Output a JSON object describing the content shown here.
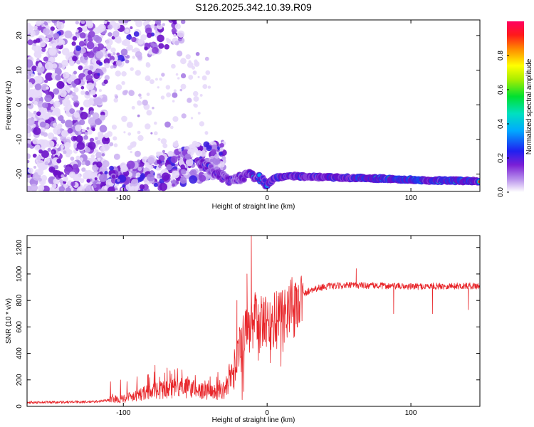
{
  "title": "S126.2025.342.10.39.R09",
  "chart_data": [
    {
      "type": "heatmap",
      "xlabel": "Height of straight line (km)",
      "ylabel": "Frequency (Hz)",
      "xlim": [
        -167,
        148
      ],
      "ylim": [
        -25,
        24.5
      ],
      "xticks": [
        -100,
        0,
        100
      ],
      "yticks": [
        -20,
        -10,
        0,
        10,
        20
      ],
      "colorbar": {
        "label": "Normalized spectral amplitude",
        "range": [
          0,
          1
        ],
        "ticks": [
          0.0,
          0.2,
          0.4,
          0.6,
          0.8
        ]
      },
      "ridge": {
        "x": [
          -45,
          -38,
          -30,
          -25,
          -18,
          -12,
          -6,
          0,
          6,
          15,
          30,
          50,
          80,
          110,
          148
        ],
        "frequency": [
          -17,
          -19,
          -21,
          -22,
          -21,
          -20,
          -21,
          -23,
          -21,
          -20.5,
          -20.8,
          -21,
          -21.3,
          -21.8,
          -22
        ]
      }
    },
    {
      "type": "line",
      "xlabel": "Height of straight line (km)",
      "ylabel": "SNR (10 * v/v)",
      "xlim": [
        -167,
        148
      ],
      "ylim": [
        0,
        1290
      ],
      "xticks": [
        -100,
        0,
        100
      ],
      "yticks": [
        0,
        200,
        400,
        600,
        800,
        1000,
        1200
      ],
      "color": "#e8262a",
      "envelope": {
        "x": [
          -167,
          -120,
          -100,
          -90,
          -80,
          -70,
          -60,
          -50,
          -40,
          -30,
          -24,
          -20,
          -16,
          -12,
          -9,
          -6,
          -3,
          0,
          5,
          10,
          15,
          20,
          25,
          30,
          40,
          60,
          80,
          100,
          120,
          148
        ],
        "y": [
          30,
          35,
          60,
          90,
          110,
          130,
          140,
          130,
          100,
          120,
          250,
          350,
          500,
          600,
          650,
          650,
          620,
          600,
          640,
          680,
          740,
          790,
          840,
          880,
          905,
          915,
          910,
          905,
          908,
          910
        ]
      },
      "spikes": [
        {
          "x": -11,
          "y": 1290
        },
        {
          "x": -14,
          "y": 1000
        },
        {
          "x": -21,
          "y": 800
        },
        {
          "x": -9,
          "y": 770
        },
        {
          "x": -78,
          "y": 310
        },
        {
          "x": 62,
          "y": 1040
        },
        {
          "x": 115,
          "y": 700
        },
        {
          "x": 88,
          "y": 700
        },
        {
          "x": 140,
          "y": 730
        }
      ]
    }
  ]
}
